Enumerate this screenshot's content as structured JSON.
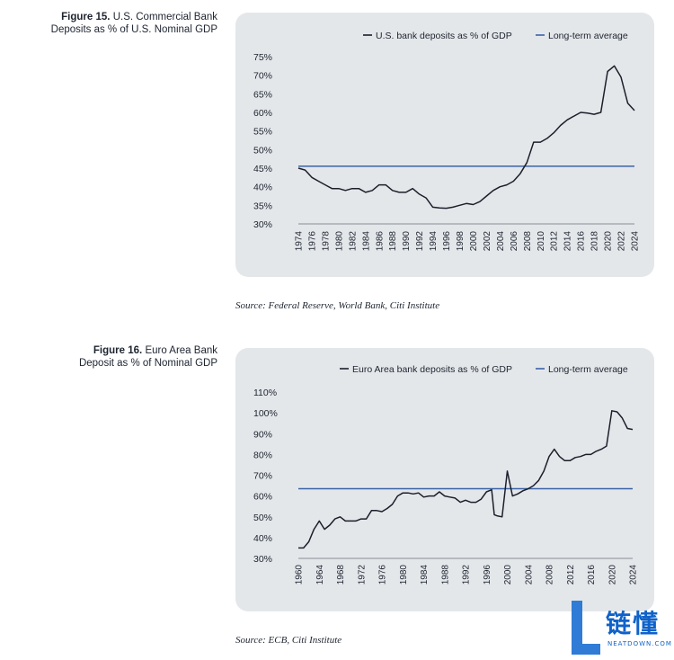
{
  "figure15": {
    "title_num": "Figure 15.",
    "title_rest": "U.S. Commercial Bank",
    "title_line2": "Deposits as % of U.S. Nominal GDP",
    "source": "Source: Federal Reserve, World Bank, Citi Institute"
  },
  "figure16": {
    "title_num": "Figure 16.",
    "title_rest": "Euro Area Bank",
    "title_line2": "Deposit as % of Nominal GDP",
    "source": "Source: ECB, Citi Institute"
  },
  "brand": {
    "name": "链懂",
    "url": "NEATDOWN.COM"
  },
  "colors": {
    "series": "#1b1f2a",
    "average": "#3a62a8",
    "panel": "#e4e7ea"
  },
  "chart_data": [
    {
      "type": "line",
      "series": [
        {
          "name": "U.S. bank deposits as % of GDP",
          "x": [
            1974,
            1975,
            1976,
            1977,
            1978,
            1979,
            1980,
            1981,
            1982,
            1983,
            1984,
            1985,
            1986,
            1987,
            1988,
            1989,
            1990,
            1991,
            1992,
            1993,
            1994,
            1995,
            1996,
            1997,
            1998,
            1999,
            2000,
            2001,
            2002,
            2003,
            2004,
            2005,
            2006,
            2007,
            2008,
            2009,
            2010,
            2011,
            2012,
            2013,
            2014,
            2015,
            2016,
            2017,
            2018,
            2019,
            2020,
            2021,
            2022,
            2023,
            2024
          ],
          "values": [
            45,
            44.5,
            42.5,
            41.5,
            40.5,
            39.5,
            39.5,
            39,
            39.5,
            39.5,
            38.5,
            39,
            40.5,
            40.5,
            39,
            38.5,
            38.5,
            39.5,
            38,
            37,
            34.5,
            34.3,
            34.2,
            34.5,
            35,
            35.5,
            35.2,
            36,
            37.5,
            39,
            40,
            40.5,
            41.5,
            43.5,
            46.5,
            52,
            52,
            53,
            54.5,
            56.5,
            58,
            59,
            60,
            59.8,
            59.5,
            60,
            71,
            72.5,
            69.5,
            62.5,
            60.5
          ]
        },
        {
          "name": "Long-term average",
          "constant": 45.5
        }
      ],
      "ylim": [
        30,
        75
      ],
      "yticks": [
        "75%",
        "70%",
        "65%",
        "60%",
        "55%",
        "50%",
        "45%",
        "40%",
        "35%",
        "30%"
      ],
      "ytick_values": [
        75,
        70,
        65,
        60,
        55,
        50,
        45,
        40,
        35,
        30
      ],
      "xlim": [
        1974,
        2024
      ],
      "xticks": [
        "1974",
        "1976",
        "1978",
        "1980",
        "1982",
        "1984",
        "1986",
        "1988",
        "1990",
        "1992",
        "1994",
        "1996",
        "1998",
        "2000",
        "2002",
        "2004",
        "2006",
        "2008",
        "2010",
        "2012",
        "2014",
        "2016",
        "2018",
        "2020",
        "2022",
        "2024"
      ],
      "xtick_values": [
        1974,
        1976,
        1978,
        1980,
        1982,
        1984,
        1986,
        1988,
        1990,
        1992,
        1994,
        1996,
        1998,
        2000,
        2002,
        2004,
        2006,
        2008,
        2010,
        2012,
        2014,
        2016,
        2018,
        2020,
        2022,
        2024
      ],
      "legend": "top-right",
      "grid": false
    },
    {
      "type": "line",
      "series": [
        {
          "name": "Euro Area bank deposits as % of GDP",
          "x": [
            1960,
            1961,
            1962,
            1963,
            1964,
            1965,
            1966,
            1967,
            1968,
            1969,
            1970,
            1971,
            1972,
            1973,
            1974,
            1975,
            1976,
            1977,
            1978,
            1979,
            1980,
            1981,
            1982,
            1983,
            1984,
            1985,
            1986,
            1987,
            1988,
            1989,
            1990,
            1991,
            1992,
            1993,
            1994,
            1995,
            1996,
            1997,
            1997.5,
            1998,
            1999,
            2000,
            2001,
            2002,
            2003,
            2004,
            2005,
            2006,
            2007,
            2008,
            2009,
            2010,
            2011,
            2012,
            2013,
            2014,
            2015,
            2016,
            2017,
            2018,
            2019,
            2020,
            2021,
            2022,
            2023,
            2024
          ],
          "values": [
            35,
            35,
            38,
            44,
            48,
            44,
            46,
            49,
            50,
            48,
            48,
            48,
            49,
            49,
            53,
            53,
            52.5,
            54,
            56,
            60,
            61.5,
            61.5,
            61,
            61.5,
            59.5,
            60,
            60,
            62,
            60,
            59.5,
            59,
            57,
            58,
            57,
            57,
            58.5,
            62,
            63,
            51,
            50.5,
            50,
            72,
            60,
            61,
            62.5,
            63.5,
            65,
            67.5,
            72,
            79,
            82.5,
            79,
            77,
            77,
            78.5,
            79,
            80,
            80,
            81.5,
            82.5,
            84,
            101,
            100.5,
            97.5,
            92.5,
            92
          ]
        },
        {
          "name": "Long-term average",
          "constant": 63.5
        }
      ],
      "ylim": [
        30,
        110
      ],
      "yticks": [
        "110%",
        "100%",
        "90%",
        "80%",
        "70%",
        "60%",
        "50%",
        "40%",
        "30%"
      ],
      "ytick_values": [
        110,
        100,
        90,
        80,
        70,
        60,
        50,
        40,
        30
      ],
      "xlim": [
        1960,
        2024
      ],
      "xticks": [
        "1960",
        "1964",
        "1968",
        "1972",
        "1976",
        "1980",
        "1984",
        "1988",
        "1992",
        "1996",
        "2000",
        "2004",
        "2008",
        "2012",
        "2016",
        "2020",
        "2024"
      ],
      "xtick_values": [
        1960,
        1964,
        1968,
        1972,
        1976,
        1980,
        1984,
        1988,
        1992,
        1996,
        2000,
        2004,
        2008,
        2012,
        2016,
        2020,
        2024
      ],
      "legend": "top-right",
      "grid": false
    }
  ]
}
